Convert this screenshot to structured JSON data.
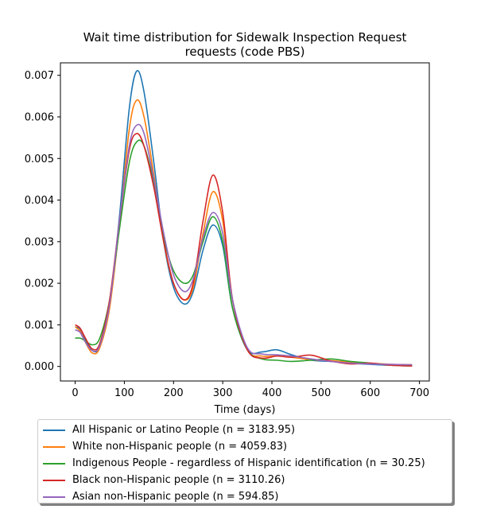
{
  "chart_data": {
    "type": "line",
    "title_line1": "Wait time distribution  for Sidewalk Inspection Request",
    "title_line2": "requests (code PBS)",
    "xlabel": "Time (days)",
    "ylabel": "",
    "xlim": [
      -30,
      720
    ],
    "ylim": [
      -0.00035,
      0.0073
    ],
    "x_ticks": [
      0,
      100,
      200,
      300,
      400,
      500,
      600,
      700
    ],
    "x_tick_labels": [
      "0",
      "100",
      "200",
      "300",
      "400",
      "500",
      "600",
      "700"
    ],
    "y_ticks": [
      0,
      0.001,
      0.002,
      0.003,
      0.004,
      0.005,
      0.006,
      0.007
    ],
    "y_tick_labels": [
      "0.000",
      "0.001",
      "0.002",
      "0.003",
      "0.004",
      "0.005",
      "0.006",
      "0.007"
    ],
    "grid": false,
    "legend_position": "below",
    "x": [
      0,
      10,
      20,
      35,
      50,
      70,
      90,
      110,
      125,
      140,
      160,
      180,
      200,
      222,
      240,
      260,
      280,
      300,
      320,
      350,
      380,
      410,
      440,
      480,
      520,
      560,
      600,
      640,
      685
    ],
    "series": [
      {
        "name": "All Hispanic or Latino People (n = 3183.95)",
        "color": "#1f77b4",
        "values": [
          0.00095,
          0.0009,
          0.00065,
          0.00038,
          0.00048,
          0.0015,
          0.0036,
          0.0062,
          0.0071,
          0.0066,
          0.0049,
          0.003,
          0.0019,
          0.0015,
          0.0018,
          0.0028,
          0.0034,
          0.0029,
          0.0014,
          0.0004,
          0.00035,
          0.0004,
          0.00028,
          0.00015,
          0.00012,
          8e-05,
          5e-05,
          3e-05,
          3e-05
        ]
      },
      {
        "name": "White non-Hispanic people (n = 4059.83)",
        "color": "#ff7f0e",
        "values": [
          0.00095,
          0.00085,
          0.0006,
          0.00032,
          0.00045,
          0.0014,
          0.0034,
          0.0057,
          0.0064,
          0.006,
          0.0046,
          0.003,
          0.002,
          0.0016,
          0.0019,
          0.0032,
          0.0042,
          0.0035,
          0.0016,
          0.0004,
          0.00025,
          0.00025,
          0.00022,
          0.00016,
          0.00014,
          0.0001,
          8e-05,
          5e-05,
          4e-05
        ]
      },
      {
        "name": "Indigenous People - regardless of Hispanic identification (n = 30.25)",
        "color": "#2ca02c",
        "values": [
          0.00068,
          0.00068,
          0.00062,
          0.00052,
          0.00068,
          0.0016,
          0.0033,
          0.0049,
          0.0054,
          0.0053,
          0.0044,
          0.0031,
          0.0023,
          0.002,
          0.0022,
          0.003,
          0.0036,
          0.003,
          0.0014,
          0.0004,
          0.00018,
          0.00015,
          0.00012,
          0.00015,
          0.00018,
          0.00012,
          8e-05,
          3e-05,
          1e-05
        ]
      },
      {
        "name": "Black non-Hispanic people (n = 3110.26)",
        "color": "#d62728",
        "values": [
          0.001,
          0.00092,
          0.0007,
          0.00042,
          0.00055,
          0.0016,
          0.0035,
          0.0052,
          0.0056,
          0.0053,
          0.0043,
          0.003,
          0.002,
          0.0016,
          0.002,
          0.0035,
          0.0046,
          0.0037,
          0.0016,
          0.0004,
          0.0002,
          0.00025,
          0.00022,
          0.00027,
          0.00013,
          6e-05,
          8e-05,
          3e-05,
          1e-05
        ]
      },
      {
        "name": "Asian non-Hispanic people (n = 594.85)",
        "color": "#9467bd",
        "values": [
          0.00088,
          0.00082,
          0.0006,
          0.00038,
          0.0005,
          0.0015,
          0.0035,
          0.0053,
          0.0058,
          0.0056,
          0.0045,
          0.0032,
          0.0022,
          0.0018,
          0.0021,
          0.0031,
          0.0037,
          0.0032,
          0.0016,
          0.00045,
          0.0003,
          0.00028,
          0.00025,
          0.00018,
          0.00012,
          8e-05,
          6e-05,
          5e-05,
          4e-05
        ]
      }
    ]
  }
}
